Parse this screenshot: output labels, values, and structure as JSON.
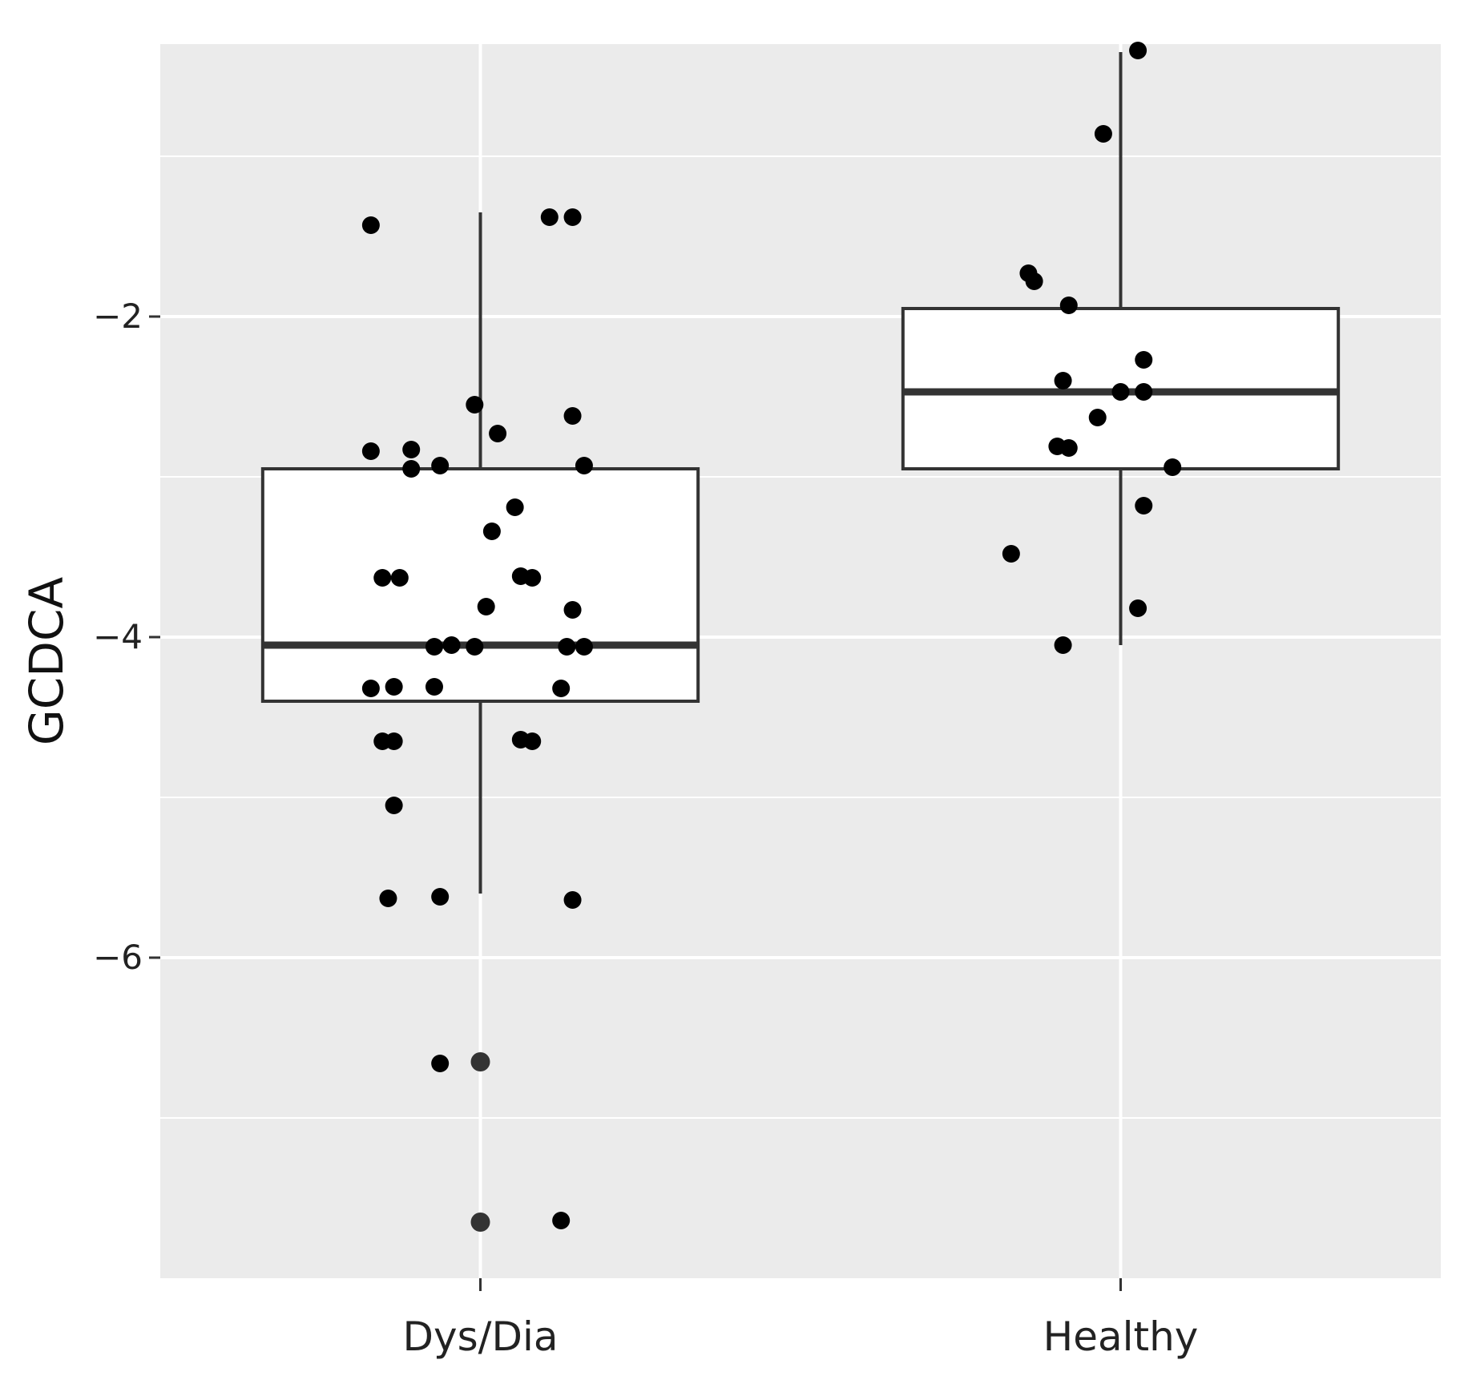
{
  "chart_data": {
    "type": "boxplot",
    "title": "",
    "xlabel": "",
    "ylabel": "GCDCA",
    "ylim": [
      -8.0,
      -0.3
    ],
    "yticks": [
      -2,
      -4,
      -6
    ],
    "ytick_labels": [
      "−2",
      "−4",
      "−6"
    ],
    "categories": [
      "Dys/Dia",
      "Healthy"
    ],
    "grid": true,
    "colors": {
      "panel": "#ebebeb",
      "grid": "#ffffff",
      "box_fill": "#ffffff",
      "box_stroke": "#333333",
      "point": "#000000",
      "outlier": "#333333"
    },
    "groups": [
      {
        "name": "Dys/Dia",
        "q1": -4.4,
        "median": -4.05,
        "q3": -2.95,
        "whisker_low": -5.6,
        "whisker_high": -1.35,
        "outliers": [
          -6.65,
          -7.65
        ],
        "points": [
          [
            -0.19,
            -1.43
          ],
          [
            0.12,
            -1.38
          ],
          [
            0.16,
            -1.38
          ],
          [
            -0.01,
            -2.55
          ],
          [
            0.03,
            -2.73
          ],
          [
            0.16,
            -2.62
          ],
          [
            -0.19,
            -2.84
          ],
          [
            -0.12,
            -2.83
          ],
          [
            -0.12,
            -2.95
          ],
          [
            -0.07,
            -2.93
          ],
          [
            0.18,
            -2.93
          ],
          [
            0.06,
            -3.19
          ],
          [
            0.02,
            -3.34
          ],
          [
            -0.17,
            -3.63
          ],
          [
            -0.14,
            -3.63
          ],
          [
            0.07,
            -3.62
          ],
          [
            0.09,
            -3.63
          ],
          [
            0.01,
            -3.81
          ],
          [
            0.16,
            -3.83
          ],
          [
            -0.08,
            -4.06
          ],
          [
            -0.05,
            -4.05
          ],
          [
            -0.01,
            -4.06
          ],
          [
            0.15,
            -4.06
          ],
          [
            0.18,
            -4.06
          ],
          [
            -0.19,
            -4.32
          ],
          [
            -0.15,
            -4.31
          ],
          [
            -0.08,
            -4.31
          ],
          [
            0.14,
            -4.32
          ],
          [
            -0.15,
            -4.65
          ],
          [
            -0.17,
            -4.65
          ],
          [
            0.07,
            -4.64
          ],
          [
            0.09,
            -4.65
          ],
          [
            -0.15,
            -5.05
          ],
          [
            -0.16,
            -5.63
          ],
          [
            -0.07,
            -5.62
          ],
          [
            0.16,
            -5.64
          ],
          [
            -0.07,
            -6.66
          ],
          [
            0.14,
            -7.64
          ]
        ]
      },
      {
        "name": "Healthy",
        "q1": -2.95,
        "median": -2.47,
        "q3": -1.95,
        "whisker_low": -4.05,
        "whisker_high": -0.35,
        "outliers": [],
        "points": [
          [
            0.03,
            -0.34
          ],
          [
            -0.03,
            -0.86
          ],
          [
            -0.16,
            -1.73
          ],
          [
            -0.15,
            -1.78
          ],
          [
            -0.09,
            -1.93
          ],
          [
            0.04,
            -2.27
          ],
          [
            -0.1,
            -2.4
          ],
          [
            0.0,
            -2.47
          ],
          [
            0.04,
            -2.47
          ],
          [
            -0.04,
            -2.63
          ],
          [
            -0.11,
            -2.81
          ],
          [
            -0.09,
            -2.82
          ],
          [
            0.09,
            -2.94
          ],
          [
            0.04,
            -3.18
          ],
          [
            -0.19,
            -3.48
          ],
          [
            0.03,
            -3.82
          ],
          [
            -0.1,
            -4.05
          ]
        ]
      }
    ]
  }
}
